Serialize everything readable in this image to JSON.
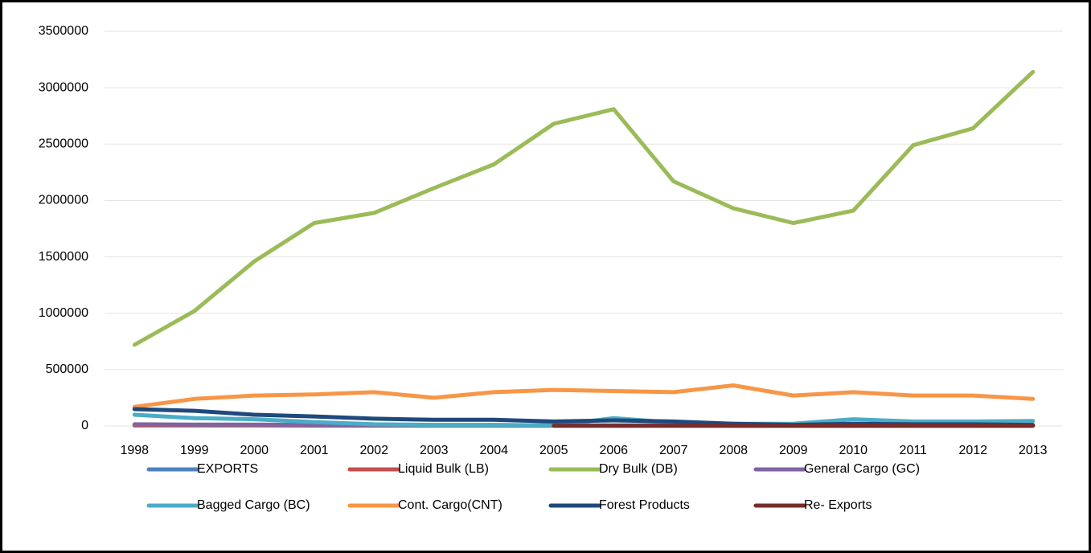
{
  "chart_data": {
    "type": "line",
    "categories": [
      "1998",
      "1999",
      "2000",
      "2001",
      "2002",
      "2003",
      "2004",
      "2005",
      "2006",
      "2007",
      "2008",
      "2009",
      "2010",
      "2011",
      "2012",
      "2013"
    ],
    "ylim": [
      0,
      3500000
    ],
    "yticks": [
      0,
      500000,
      1000000,
      1500000,
      2000000,
      2500000,
      3000000,
      3500000
    ],
    "grid": true,
    "legend": "bottom",
    "series": [
      {
        "name": "EXPORTS",
        "color": "#4f81bd",
        "values": [
          10000,
          8000,
          8000,
          6000,
          5000,
          5000,
          5000,
          4000,
          4000,
          4000,
          3000,
          3000,
          3000,
          3000,
          3000,
          3000
        ]
      },
      {
        "name": "Liquid Bulk (LB)",
        "color": "#c0504d",
        "values": [
          5000,
          5000,
          5000,
          4000,
          4000,
          4000,
          4000,
          3000,
          3000,
          3000,
          3000,
          3000,
          3000,
          3000,
          3000,
          3000
        ]
      },
      {
        "name": "Dry Bulk (DB)",
        "color": "#9bbb59",
        "values": [
          720000,
          1020000,
          1460000,
          1800000,
          1890000,
          2110000,
          2320000,
          2680000,
          2810000,
          2170000,
          1930000,
          1800000,
          1910000,
          2490000,
          2640000,
          3140000
        ]
      },
      {
        "name": "General Cargo (GC)",
        "color": "#8064a2",
        "values": [
          15000,
          12000,
          12000,
          10000,
          8000,
          8000,
          8000,
          6000,
          6000,
          6000,
          5000,
          5000,
          5000,
          5000,
          5000,
          5000
        ]
      },
      {
        "name": "Bagged Cargo (BC)",
        "color": "#4bacc6",
        "values": [
          100000,
          70000,
          60000,
          35000,
          15000,
          10000,
          10000,
          5000,
          70000,
          30000,
          20000,
          20000,
          60000,
          40000,
          40000,
          45000
        ]
      },
      {
        "name": "Cont. Cargo(CNT)",
        "color": "#f79646",
        "values": [
          170000,
          240000,
          270000,
          280000,
          300000,
          250000,
          300000,
          320000,
          310000,
          300000,
          360000,
          270000,
          300000,
          270000,
          270000,
          240000
        ]
      },
      {
        "name": "Forest Products",
        "color": "#1f497d",
        "values": [
          150000,
          135000,
          100000,
          85000,
          65000,
          55000,
          55000,
          40000,
          50000,
          40000,
          20000,
          10000,
          20000,
          15000,
          15000,
          10000
        ]
      },
      {
        "name": "Re- Exports",
        "color": "#772c2a",
        "values": [
          null,
          null,
          null,
          null,
          null,
          null,
          null,
          3000,
          3000,
          3000,
          3000,
          3000,
          3000,
          3000,
          3000,
          3000
        ]
      }
    ]
  }
}
